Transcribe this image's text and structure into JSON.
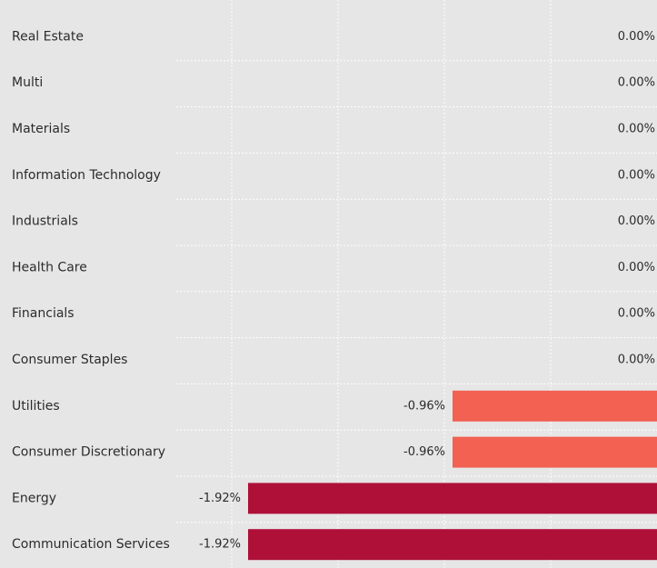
{
  "chart_data": {
    "type": "bar",
    "orientation": "horizontal",
    "categories": [
      "Real Estate",
      "Multi",
      "Materials",
      "Information Technology",
      "Industrials",
      "Health Care",
      "Financials",
      "Consumer Staples",
      "Utilities",
      "Consumer Discretionary",
      "Energy",
      "Communication Services"
    ],
    "values": [
      0,
      0,
      0,
      0,
      0,
      0,
      0,
      0,
      -0.96,
      -0.96,
      -1.92,
      -1.92
    ],
    "value_labels": [
      "0.00%",
      "0.00%",
      "0.00%",
      "0.00%",
      "0.00%",
      "0.00%",
      "0.00%",
      "0.00%",
      "-0.96%",
      "-0.96%",
      "-1.92%",
      "-1.92%"
    ],
    "unit": "%",
    "xlim": [
      -1.92,
      0
    ],
    "grid": true,
    "legend": "none",
    "title": "",
    "xlabel": "",
    "ylabel": "",
    "colors": {
      "moderate_negative": "#f26152",
      "strong_negative": "#ae1038",
      "grid": "#ffffff",
      "background": "#e6e6e6",
      "text": "#2b2b2b"
    }
  }
}
